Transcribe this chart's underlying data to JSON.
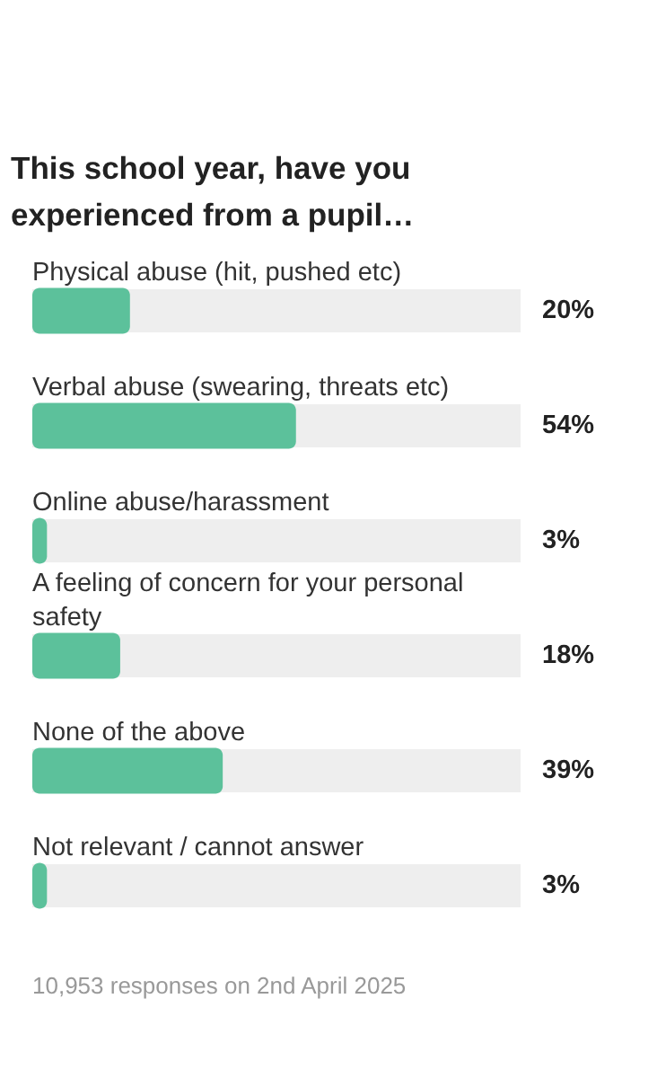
{
  "chart_data": {
    "type": "bar",
    "orientation": "horizontal",
    "title": "This school year, have you experienced from a pupil…",
    "categories": [
      "Physical abuse (hit, pushed etc)",
      "Verbal abuse (swearing, threats etc)",
      "Online abuse/harassment",
      "A feeling of concern for your personal safety",
      "None of the above",
      "Not relevant / cannot answer"
    ],
    "values": [
      20,
      54,
      3,
      18,
      39,
      3
    ],
    "value_labels": [
      "20%",
      "54%",
      "3%",
      "18%",
      "39%",
      "3%"
    ],
    "color": "#5cc19b",
    "xlim": [
      0,
      100
    ],
    "tick_labels": false,
    "grid": false,
    "annotations": [
      "10,953 responses on 2nd April 2025"
    ]
  }
}
